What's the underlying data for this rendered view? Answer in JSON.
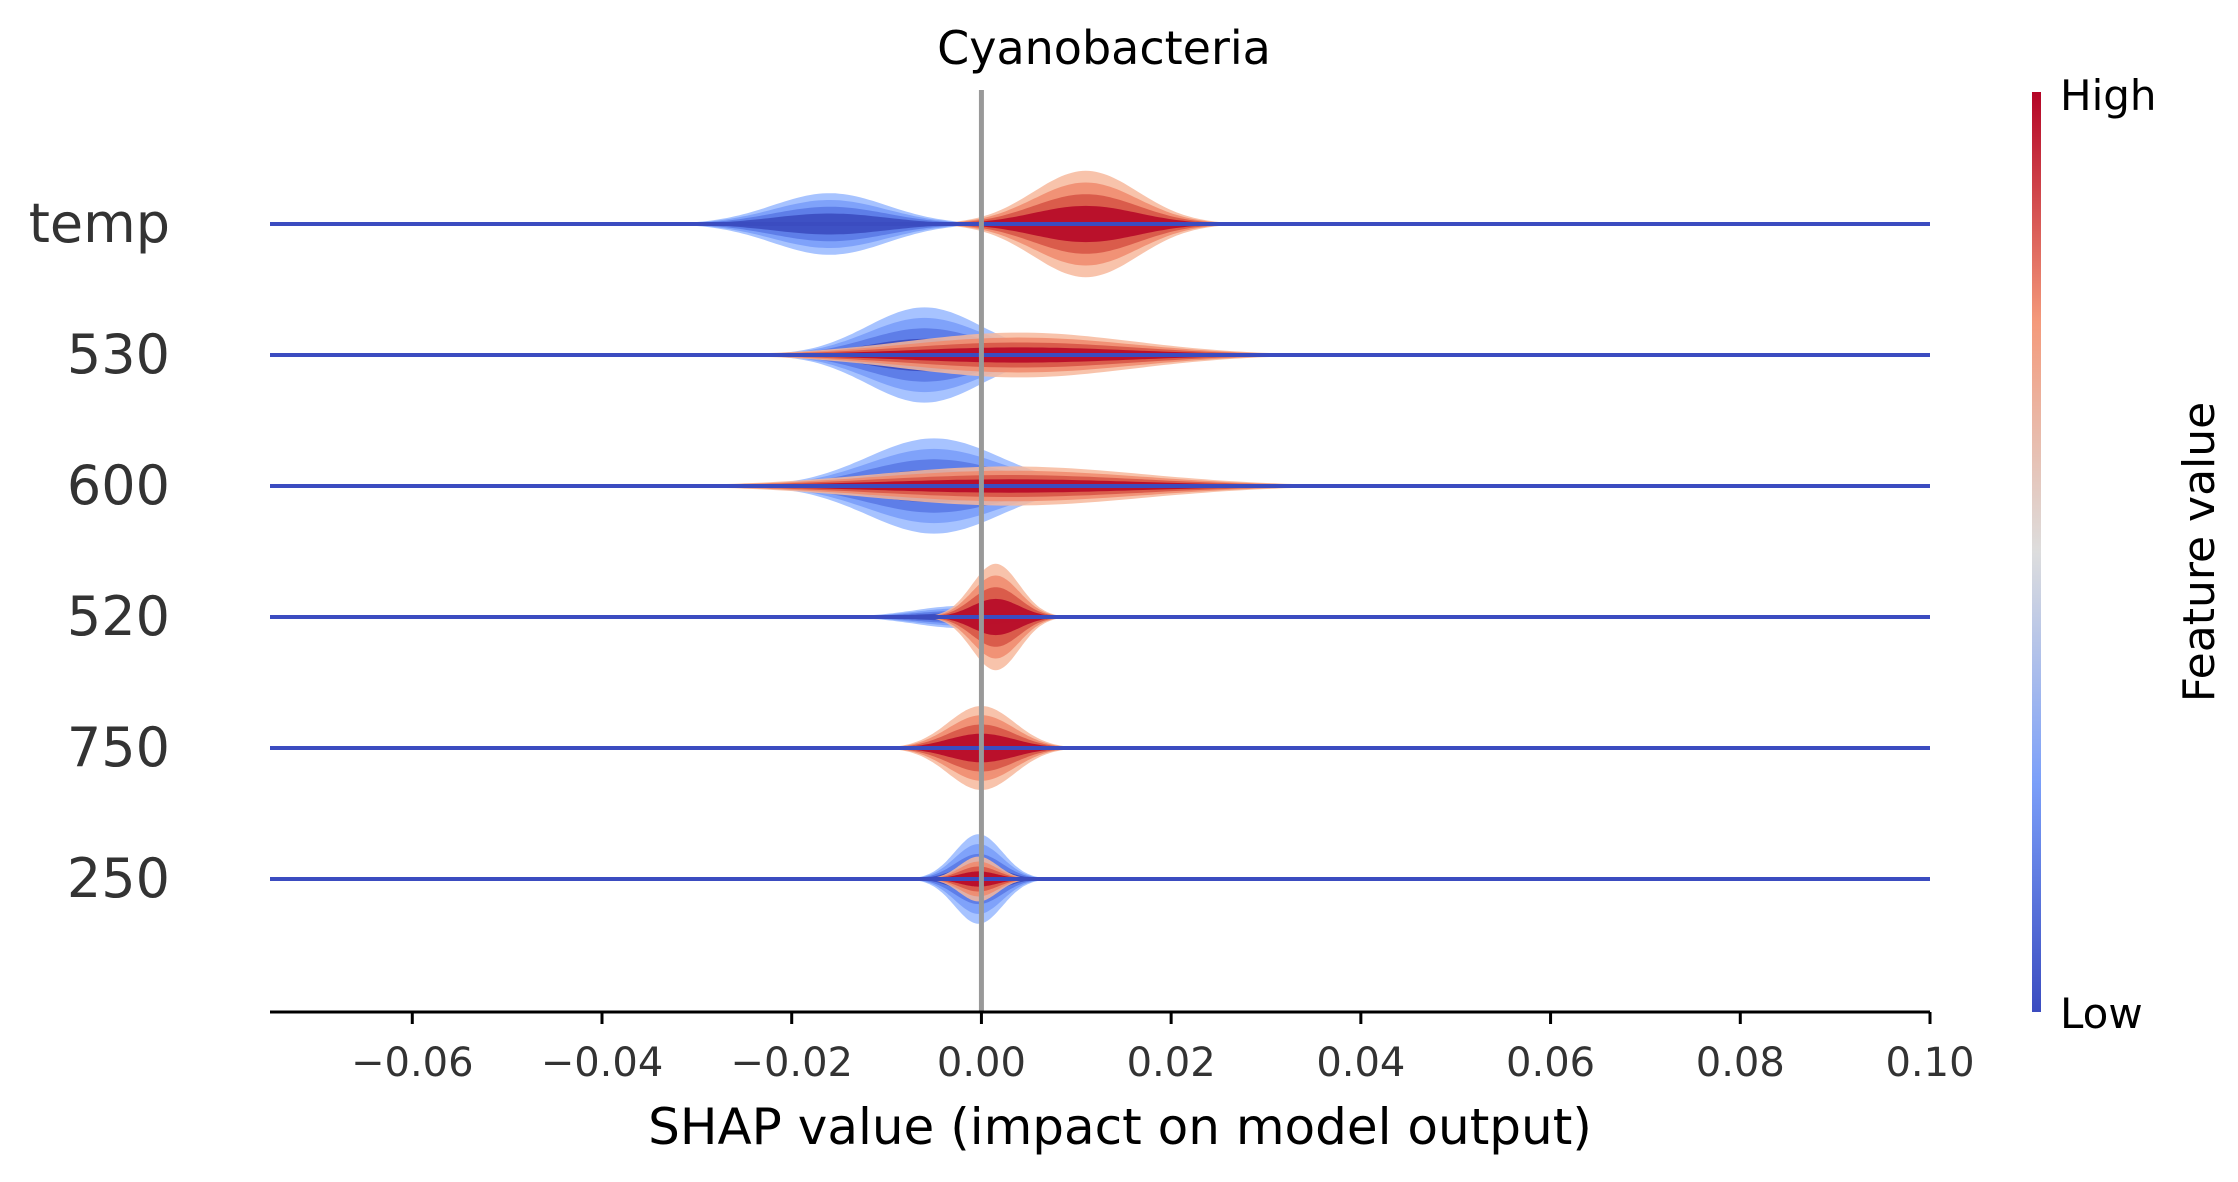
{
  "chart_data": {
    "type": "violin",
    "title": "Cyanobacteria",
    "xlabel": "SHAP value (impact on model output)",
    "xlim": [
      -0.075,
      0.1
    ],
    "x_ticks": [
      -0.06,
      -0.04,
      -0.02,
      0.0,
      0.02,
      0.04,
      0.06,
      0.08,
      0.1
    ],
    "x_tick_labels": [
      "−0.06",
      "−0.04",
      "−0.02",
      "0.00",
      "0.02",
      "0.04",
      "0.06",
      "0.08",
      "0.10"
    ],
    "features": [
      {
        "name": "temp",
        "low": {
          "center": -0.016,
          "spread": 0.006,
          "height": 0.55,
          "tail_left": -0.045
        },
        "high": {
          "center": 0.011,
          "spread": 0.0055,
          "height": 0.95,
          "tail_right": 0.03
        }
      },
      {
        "name": "530",
        "low": {
          "center": -0.006,
          "spread": 0.006,
          "height": 0.85,
          "tail_left": -0.02
        },
        "high": {
          "center": 0.004,
          "spread": 0.012,
          "height": 0.4,
          "tail_right": 0.045
        }
      },
      {
        "name": "600",
        "low": {
          "center": -0.005,
          "spread": 0.007,
          "height": 0.85,
          "tail_left": -0.02
        },
        "high": {
          "center": 0.003,
          "spread": 0.014,
          "height": 0.35,
          "tail_right": 0.045
        }
      },
      {
        "name": "520",
        "low": {
          "center": -0.002,
          "spread": 0.005,
          "height": 0.2,
          "tail_left": -0.012
        },
        "high": {
          "center": 0.0015,
          "spread": 0.0025,
          "height": 0.95,
          "tail_right": 0.007
        }
      },
      {
        "name": "750",
        "low": {
          "center": 0.0005,
          "spread": 0.003,
          "height": 0.5,
          "tail_left": -0.01
        },
        "high": {
          "center": 0.0,
          "spread": 0.0035,
          "height": 0.75,
          "tail_right": 0.006
        }
      },
      {
        "name": "250",
        "low": {
          "center": -0.0003,
          "spread": 0.0025,
          "height": 0.8,
          "tail_left": -0.006
        },
        "high": {
          "center": -0.0003,
          "spread": 0.002,
          "height": 0.4,
          "tail_right": 0.004
        }
      }
    ],
    "colorbar": {
      "label": "Feature value",
      "high_label": "High",
      "low_label": "Low",
      "colormap": "coolwarm",
      "high_color": "#b40426",
      "mid_color": "#dddddd",
      "low_color": "#3b4cc0"
    },
    "zero_line_color": "#999999",
    "baseline_color": "#3b4cc0"
  }
}
